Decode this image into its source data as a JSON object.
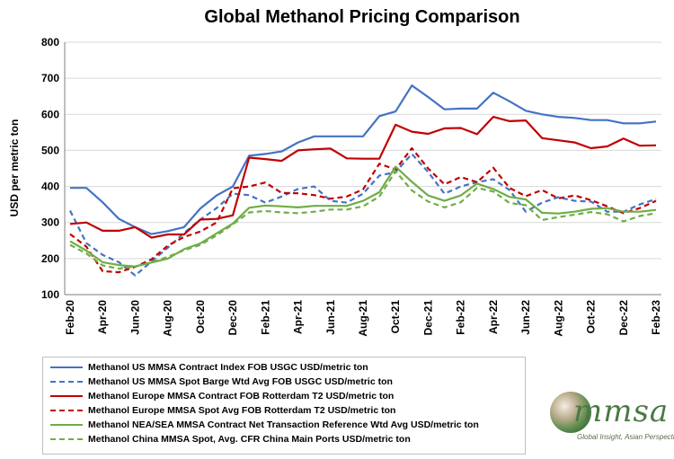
{
  "chart_data": {
    "type": "line",
    "title": "Global Methanol Pricing Comparison",
    "xlabel": "",
    "ylabel": "USD per metric ton",
    "ylim": [
      100,
      800
    ],
    "yticks": [
      100,
      200,
      300,
      400,
      500,
      600,
      700,
      800
    ],
    "grid": true,
    "x": [
      "Feb-20",
      "Mar-20",
      "Apr-20",
      "May-20",
      "Jun-20",
      "Jul-20",
      "Aug-20",
      "Sep-20",
      "Oct-20",
      "Nov-20",
      "Dec-20",
      "Jan-21",
      "Feb-21",
      "Mar-21",
      "Apr-21",
      "May-21",
      "Jun-21",
      "Jul-21",
      "Aug-21",
      "Sep-21",
      "Oct-21",
      "Nov-21",
      "Dec-21",
      "Jan-22",
      "Feb-22",
      "Mar-22",
      "Apr-22",
      "May-22",
      "Jun-22",
      "Jul-22",
      "Aug-22",
      "Sep-22",
      "Oct-22",
      "Nov-22",
      "Dec-22",
      "Jan-23",
      "Feb-23"
    ],
    "x_tick_labels": [
      "Feb-20",
      "Apr-20",
      "Jun-20",
      "Aug-20",
      "Oct-20",
      "Dec-20",
      "Feb-21",
      "Apr-21",
      "Jun-21",
      "Aug-21",
      "Oct-21",
      "Dec-21",
      "Feb-22",
      "Apr-22",
      "Jun-22",
      "Aug-22",
      "Oct-22",
      "Dec-22",
      "Feb-23"
    ],
    "series": [
      {
        "name": "Methanol US MMSA Contract Index FOB USGC USD/metric ton",
        "color": "#4472c4",
        "dash": "solid",
        "values": [
          396,
          396,
          356,
          310,
          287,
          268,
          276,
          287,
          339,
          375,
          400,
          485,
          490,
          497,
          522,
          539,
          539,
          539,
          539,
          595,
          608,
          680,
          648,
          614,
          616,
          616,
          660,
          636,
          610,
          600,
          593,
          590,
          584,
          584,
          575,
          575,
          580
        ]
      },
      {
        "name": "Methanol US MMSA Spot Barge Wtd Avg FOB USGC USD/metric ton",
        "color": "#4472c4",
        "dash": "dashed",
        "values": [
          333,
          243,
          210,
          190,
          153,
          192,
          230,
          271,
          308,
          340,
          380,
          376,
          355,
          372,
          393,
          400,
          360,
          355,
          380,
          430,
          440,
          490,
          440,
          380,
          400,
          412,
          420,
          390,
          330,
          355,
          370,
          360,
          358,
          330,
          330,
          350,
          365
        ]
      },
      {
        "name": "Methanol Europe MMSA Contract FOB Rotterdam T2 USD/metric ton",
        "color": "#c00000",
        "dash": "solid",
        "values": [
          296,
          300,
          277,
          277,
          287,
          258,
          267,
          267,
          308,
          310,
          320,
          480,
          476,
          471,
          500,
          503,
          505,
          478,
          477,
          477,
          571,
          552,
          546,
          561,
          562,
          545,
          593,
          581,
          583,
          534,
          528,
          522,
          506,
          511,
          533,
          513,
          514
        ]
      },
      {
        "name": "Methanol Europe MMSA Spot Avg FOB Rotterdam T2 USD/metric ton",
        "color": "#c00000",
        "dash": "dashed",
        "values": [
          268,
          233,
          165,
          162,
          177,
          198,
          236,
          260,
          275,
          300,
          395,
          400,
          411,
          382,
          381,
          376,
          366,
          372,
          392,
          463,
          447,
          506,
          450,
          406,
          426,
          412,
          452,
          396,
          373,
          390,
          367,
          375,
          362,
          345,
          326,
          340,
          360
        ]
      },
      {
        "name": "Methanol NEA/SEA MMSA Contract Net Transaction Reference Wtd Avg USD/metric ton",
        "color": "#70ad47",
        "dash": "solid",
        "values": [
          248,
          222,
          190,
          182,
          178,
          189,
          200,
          226,
          242,
          270,
          297,
          341,
          347,
          345,
          342,
          346,
          346,
          346,
          360,
          384,
          455,
          413,
          375,
          360,
          375,
          408,
          393,
          371,
          364,
          327,
          325,
          330,
          338,
          340,
          330,
          330,
          335
        ]
      },
      {
        "name": "Methanol China MMSA Spot, Avg. CFR China Main Ports USD/metric ton",
        "color": "#70ad47",
        "dash": "dashed",
        "values": [
          238,
          214,
          181,
          172,
          178,
          190,
          205,
          223,
          238,
          264,
          295,
          328,
          332,
          328,
          326,
          330,
          336,
          336,
          345,
          372,
          442,
          389,
          358,
          342,
          356,
          396,
          386,
          354,
          348,
          307,
          315,
          322,
          329,
          323,
          303,
          318,
          326
        ]
      }
    ]
  },
  "logo": {
    "name": "mmsa",
    "tagline": "Global Insight, Asian Perspective™"
  }
}
